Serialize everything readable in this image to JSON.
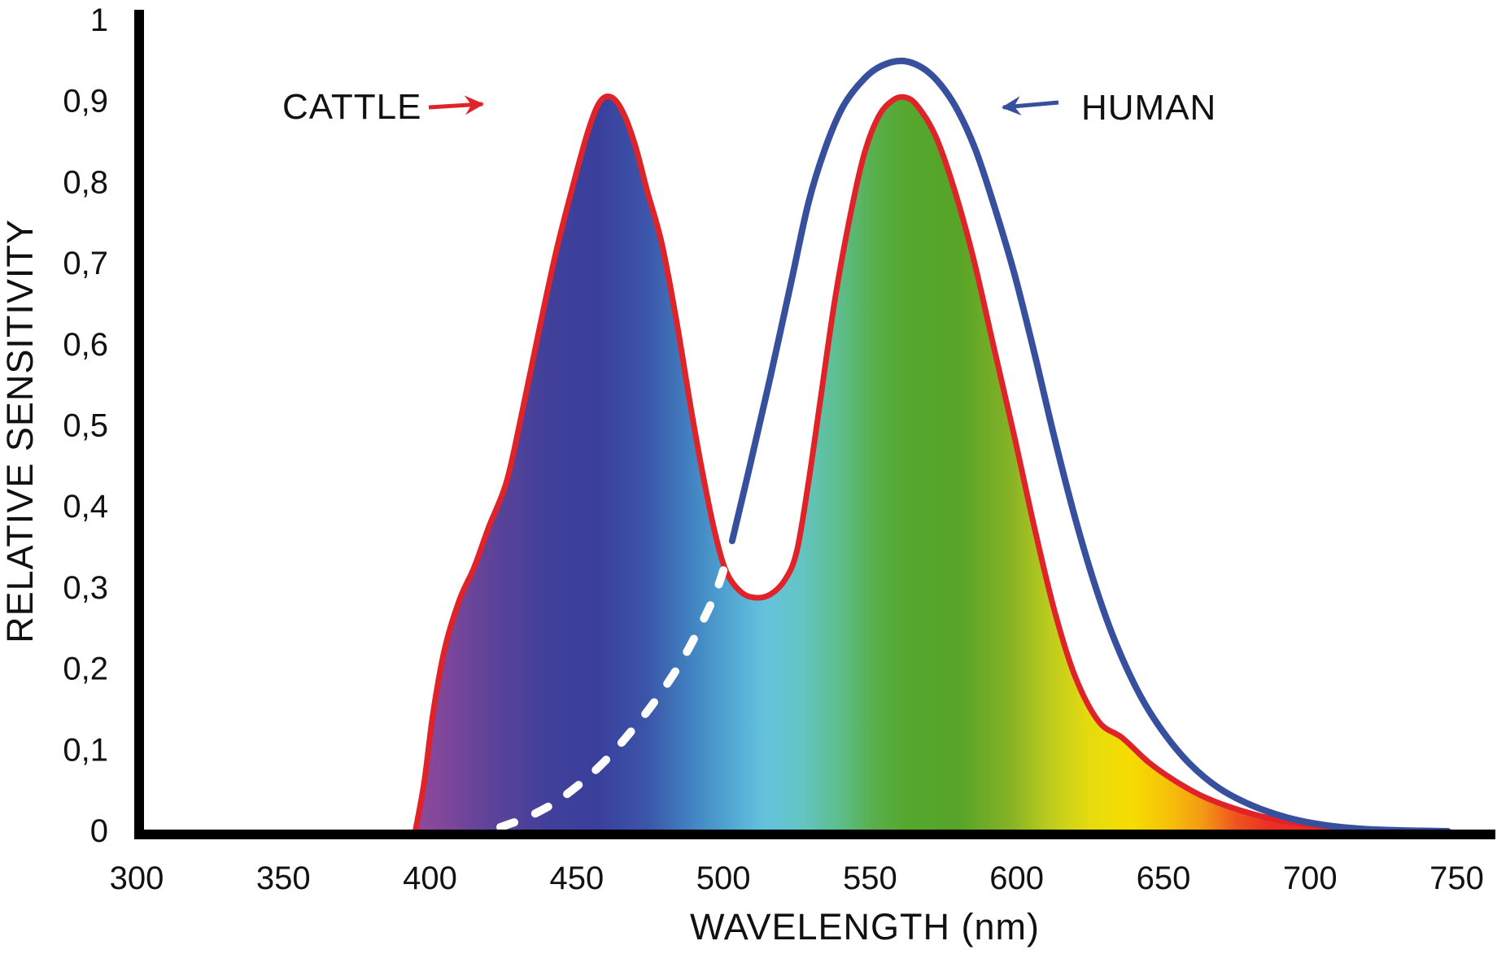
{
  "chart_data": {
    "type": "line",
    "title": "",
    "xlabel": "WAVELENGTH (nm)",
    "ylabel": "RELATIVE SENSITIVITY",
    "xlim": [
      300,
      763
    ],
    "ylim": [
      0,
      1
    ],
    "grid": false,
    "decimal_separator": ",",
    "x_ticks": [
      300,
      350,
      400,
      450,
      500,
      550,
      600,
      650,
      700,
      750
    ],
    "x_tick_labels": [
      "300",
      "350",
      "400",
      "450",
      "500",
      "550",
      "600",
      "650",
      "700",
      "750"
    ],
    "y_ticks": [
      0,
      0.1,
      0.2,
      0.3,
      0.4,
      0.5,
      0.6,
      0.7,
      0.8,
      0.9,
      1
    ],
    "y_tick_labels": [
      "0",
      "0,1",
      "0,2",
      "0,3",
      "0,4",
      "0,5",
      "0,6",
      "0,7",
      "0,8",
      "0,9",
      "1"
    ],
    "colors": {
      "cattle_stroke": "#E02329",
      "human_stroke": "#36509E",
      "hidden_dash": "#FFFFFF",
      "axis": "#000000",
      "text": "#111111",
      "background": "#FFFFFF"
    },
    "series": [
      {
        "name": "CATTLE",
        "line_color": "#E02329",
        "fill": "spectrum-gradient",
        "peaks": [
          {
            "wavelength_nm": 457,
            "sensitivity": 0.9
          },
          {
            "wavelength_nm": 560,
            "sensitivity": 0.905
          }
        ],
        "dip": {
          "wavelength_nm": 511,
          "sensitivity": 0.29
        },
        "x": [
          395,
          398,
          401,
          405,
          410,
          415,
          420,
          426,
          431,
          437,
          443,
          449,
          454,
          458,
          462,
          466,
          470,
          474,
          479,
          484,
          489,
          493,
          497,
          501,
          506,
          511,
          516,
          521,
          525,
          529,
          533,
          538,
          543,
          548,
          553,
          558,
          562,
          566,
          572,
          578,
          585,
          592,
          599,
          606,
          613,
          620,
          628,
          636,
          645,
          654,
          664,
          676,
          690,
          705,
          722,
          740
        ],
        "y": [
          0,
          0.06,
          0.145,
          0.225,
          0.285,
          0.325,
          0.375,
          0.43,
          0.51,
          0.615,
          0.715,
          0.8,
          0.865,
          0.9,
          0.905,
          0.885,
          0.845,
          0.79,
          0.725,
          0.63,
          0.52,
          0.44,
          0.37,
          0.32,
          0.295,
          0.288,
          0.292,
          0.31,
          0.345,
          0.43,
          0.53,
          0.655,
          0.755,
          0.835,
          0.882,
          0.902,
          0.905,
          0.895,
          0.86,
          0.8,
          0.71,
          0.6,
          0.49,
          0.375,
          0.27,
          0.19,
          0.135,
          0.115,
          0.085,
          0.062,
          0.042,
          0.026,
          0.013,
          0.006,
          0.002,
          0
        ]
      },
      {
        "name": "HUMAN",
        "line_color": "#36509E",
        "fill": "none",
        "peaks": [
          {
            "wavelength_nm": 561,
            "sensitivity": 0.95
          }
        ],
        "hidden_left_flank_style": "white dashed (inside cattle fill)",
        "visible_split_wavelength_nm": 503,
        "x": [
          424,
          433,
          442,
          451,
          460,
          469,
          477,
          485,
          492,
          498,
          503,
          509,
          516,
          523,
          529,
          535,
          541,
          548,
          554,
          561,
          568,
          574,
          580,
          586,
          592,
          599,
          606,
          613,
          620,
          627,
          634,
          642,
          650,
          659,
          669,
          680,
          692,
          704,
          717,
          731,
          747
        ],
        "y": [
          0.005,
          0.017,
          0.034,
          0.058,
          0.088,
          0.125,
          0.162,
          0.205,
          0.252,
          0.3,
          0.358,
          0.45,
          0.56,
          0.675,
          0.775,
          0.845,
          0.895,
          0.928,
          0.944,
          0.95,
          0.941,
          0.921,
          0.888,
          0.84,
          0.775,
          0.69,
          0.59,
          0.483,
          0.385,
          0.3,
          0.23,
          0.168,
          0.122,
          0.083,
          0.053,
          0.032,
          0.017,
          0.008,
          0.003,
          0.001,
          0
        ]
      }
    ],
    "annotations": [
      {
        "text": "CATTLE",
        "arrow_direction": "right",
        "arrow_color": "#E02329"
      },
      {
        "text": "HUMAN",
        "arrow_direction": "left",
        "arrow_color": "#36509E"
      }
    ],
    "spectrum_gradient": [
      {
        "wavelength_nm": 395,
        "color": "#91499B"
      },
      {
        "wavelength_nm": 420,
        "color": "#5F4399"
      },
      {
        "wavelength_nm": 440,
        "color": "#41409A"
      },
      {
        "wavelength_nm": 457,
        "color": "#3A3F9C"
      },
      {
        "wavelength_nm": 474,
        "color": "#3B55A9"
      },
      {
        "wavelength_nm": 489,
        "color": "#4183C1"
      },
      {
        "wavelength_nm": 503,
        "color": "#52A8D2"
      },
      {
        "wavelength_nm": 514,
        "color": "#63C3DE"
      },
      {
        "wavelength_nm": 527,
        "color": "#63C4C2"
      },
      {
        "wavelength_nm": 539,
        "color": "#5DBE8E"
      },
      {
        "wavelength_nm": 551,
        "color": "#58AF4B"
      },
      {
        "wavelength_nm": 563,
        "color": "#55A72E"
      },
      {
        "wavelength_nm": 580,
        "color": "#56A428"
      },
      {
        "wavelength_nm": 597,
        "color": "#83B126"
      },
      {
        "wavelength_nm": 612,
        "color": "#C0CD1D"
      },
      {
        "wavelength_nm": 625,
        "color": "#E6DB0E"
      },
      {
        "wavelength_nm": 639,
        "color": "#F6DC00"
      },
      {
        "wavelength_nm": 651,
        "color": "#F6C308"
      },
      {
        "wavelength_nm": 663,
        "color": "#F49B13"
      },
      {
        "wavelength_nm": 675,
        "color": "#EF5220"
      },
      {
        "wavelength_nm": 687,
        "color": "#ED2C24"
      },
      {
        "wavelength_nm": 740,
        "color": "#ED2A24"
      }
    ]
  }
}
